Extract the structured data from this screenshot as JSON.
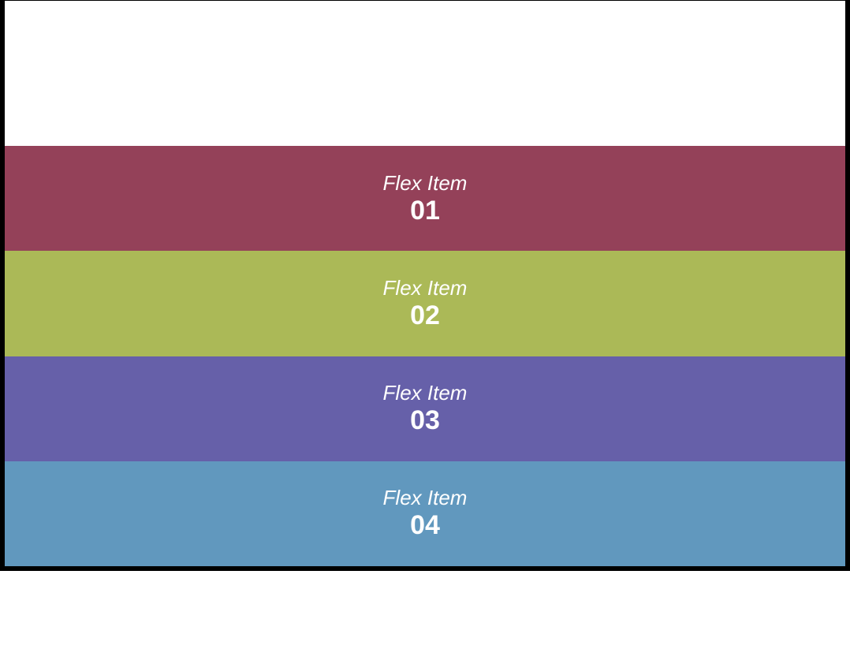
{
  "items": [
    {
      "label": "Flex Item",
      "number": "01",
      "color": "#944159"
    },
    {
      "label": "Flex Item",
      "number": "02",
      "color": "#abb957"
    },
    {
      "label": "Flex Item",
      "number": "03",
      "color": "#6660a9"
    },
    {
      "label": "Flex Item",
      "number": "04",
      "color": "#6198be"
    }
  ]
}
